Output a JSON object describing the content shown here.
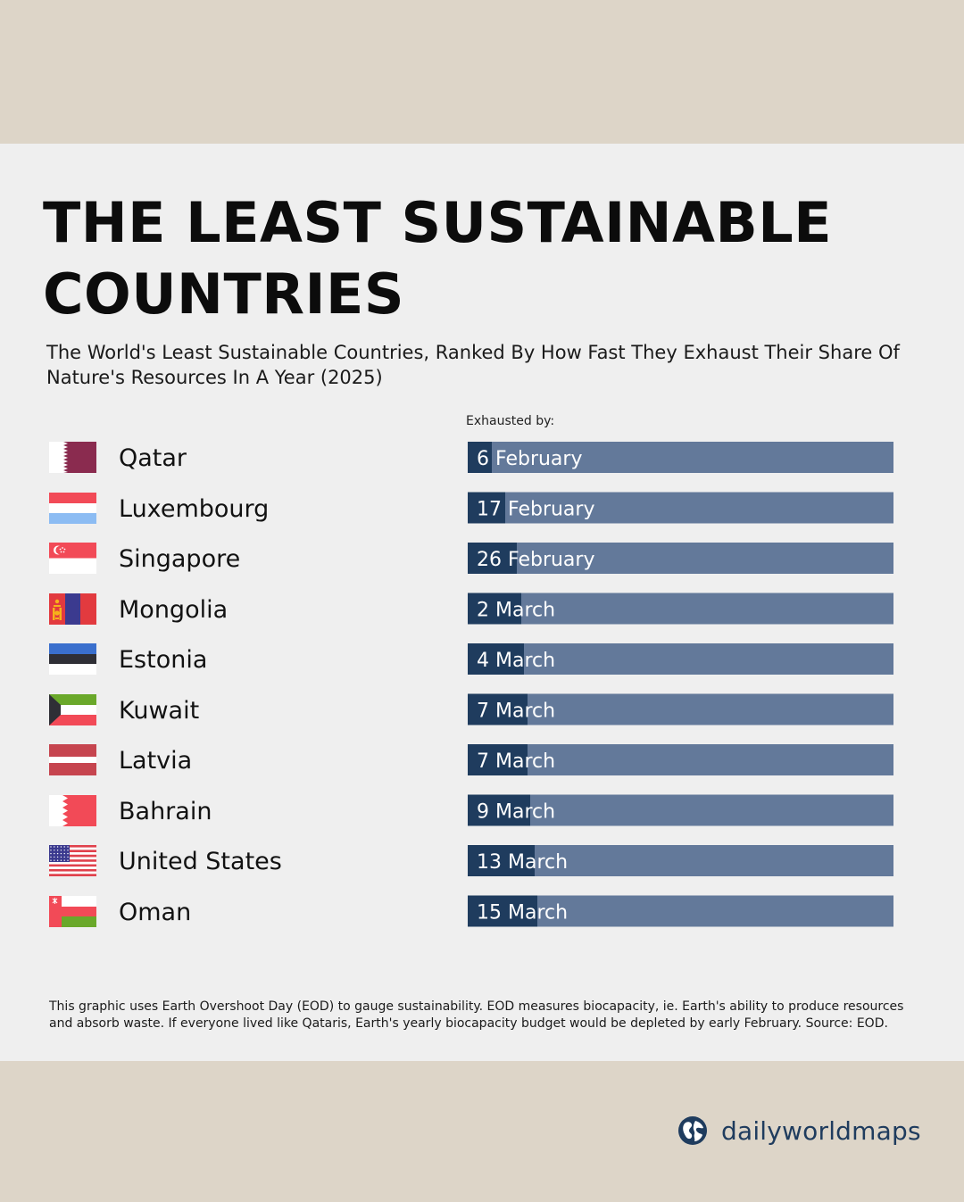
{
  "title": "THE LEAST SUSTAINABLE COUNTRIES",
  "subtitle": "The World's Least Sustainable Countries, Ranked By How Fast They Exhaust Their Share Of Nature's Resources In A Year (2025)",
  "column_label": "Exhausted by:",
  "footnote": "This graphic uses Earth Overshoot Day (EOD) to gauge sustainability. EOD measures biocapacity, ie. Earth's ability to produce resources and absorb waste. If everyone lived like Qataris, Earth's yearly biocapacity budget would be depleted by early February. Source: EOD.",
  "brand": {
    "name": "dailyworldmaps",
    "icon": "globe-icon"
  },
  "colors": {
    "bar_track": "#63799a",
    "bar_fill": "#1f3c5e",
    "bar_text": "#ffffff",
    "panel_bg": "#efefef",
    "band_bg": "#ddd5c8"
  },
  "chart_data": {
    "type": "bar",
    "orientation": "horizontal",
    "title": "THE LEAST SUSTAINABLE COUNTRIES",
    "categories": [
      "Qatar",
      "Luxembourg",
      "Singapore",
      "Mongolia",
      "Estonia",
      "Kuwait",
      "Latvia",
      "Bahrain",
      "United States",
      "Oman"
    ],
    "labels": [
      "6 February",
      "17 February",
      "26 February",
      "2 March",
      "4 March",
      "7 March",
      "7 March",
      "9 March",
      "13 March",
      "15 March"
    ],
    "values": [
      37,
      48,
      57,
      61,
      63,
      66,
      66,
      68,
      72,
      74
    ],
    "xlim": [
      1,
      365
    ],
    "flags": [
      "qatar-flag-icon",
      "luxembourg-flag-icon",
      "singapore-flag-icon",
      "mongolia-flag-icon",
      "estonia-flag-icon",
      "kuwait-flag-icon",
      "latvia-flag-icon",
      "bahrain-flag-icon",
      "united-states-flag-icon",
      "oman-flag-icon"
    ]
  }
}
